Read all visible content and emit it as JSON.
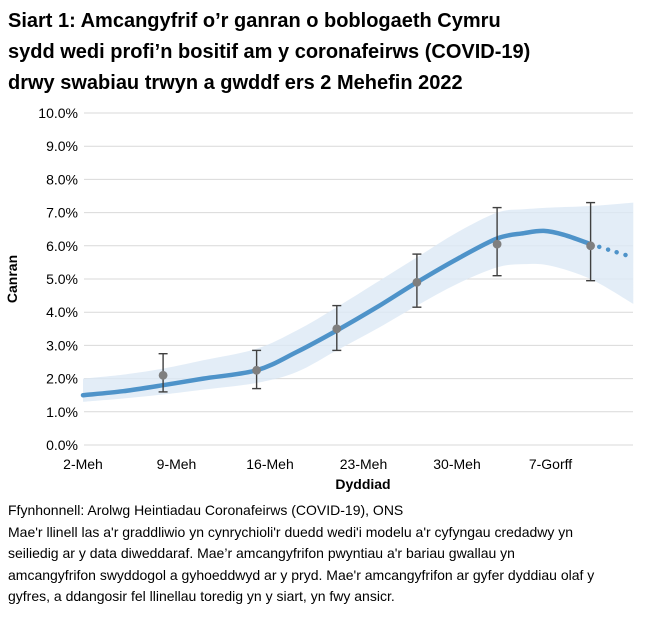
{
  "title": {
    "lines": [
      "Siart 1: Amcangyfrif o’r ganran o boblogaeth Cymru",
      "sydd wedi profi’n bositif am y coronafeirws (COVID-19)",
      "drwy swabiau trwyn a gwddf ers 2 Mehefin 2022"
    ]
  },
  "chart_data": {
    "type": "line",
    "title": "Estimated percentage of the population of Wales testing positive for COVID-19 (modelled trend with credible interval and official point estimates)",
    "xlabel": "Dyddiad",
    "ylabel": "Canran",
    "ylim": [
      0,
      10
    ],
    "grid": true,
    "legend": false,
    "y_ticks": [
      {
        "value": 0,
        "label": "0.0%"
      },
      {
        "value": 1,
        "label": "1.0%"
      },
      {
        "value": 2,
        "label": "2.0%"
      },
      {
        "value": 3,
        "label": "3.0%"
      },
      {
        "value": 4,
        "label": "4.0%"
      },
      {
        "value": 5,
        "label": "5.0%"
      },
      {
        "value": 6,
        "label": "6.0%"
      },
      {
        "value": 7,
        "label": "7.0%"
      },
      {
        "value": 8,
        "label": "8.0%"
      },
      {
        "value": 9,
        "label": "9.0%"
      },
      {
        "value": 10,
        "label": "10.0%"
      }
    ],
    "x_ticks": [
      {
        "day": 0,
        "label": "2-Meh"
      },
      {
        "day": 7,
        "label": "9-Meh"
      },
      {
        "day": 14,
        "label": "16-Meh"
      },
      {
        "day": 21,
        "label": "23-Meh"
      },
      {
        "day": 28,
        "label": "30-Meh"
      },
      {
        "day": 35,
        "label": "7-Gorff"
      }
    ],
    "series": [
      {
        "name": "modelled-trend",
        "style": "solid",
        "points": [
          [
            0,
            1.5
          ],
          [
            3,
            1.62
          ],
          [
            6,
            1.8
          ],
          [
            9,
            2.0
          ],
          [
            13,
            2.25
          ],
          [
            16,
            2.8
          ],
          [
            19,
            3.45
          ],
          [
            22,
            4.15
          ],
          [
            25,
            4.9
          ],
          [
            28,
            5.6
          ],
          [
            31,
            6.22
          ],
          [
            33,
            6.38
          ],
          [
            34.5,
            6.45
          ],
          [
            36,
            6.33
          ],
          [
            38,
            6.05
          ]
        ]
      },
      {
        "name": "modelled-trend-uncertain",
        "style": "dotted",
        "points": [
          [
            38,
            6.05
          ],
          [
            39.6,
            5.85
          ],
          [
            41.2,
            5.65
          ]
        ]
      }
    ],
    "confidence_band": {
      "upper": [
        [
          0,
          2.0
        ],
        [
          3,
          2.12
        ],
        [
          6,
          2.3
        ],
        [
          9,
          2.55
        ],
        [
          13,
          2.9
        ],
        [
          16,
          3.45
        ],
        [
          19,
          4.15
        ],
        [
          22,
          4.9
        ],
        [
          25,
          5.65
        ],
        [
          28,
          6.4
        ],
        [
          31,
          7.0
        ],
        [
          33,
          7.1
        ],
        [
          35,
          7.15
        ],
        [
          38,
          7.2
        ],
        [
          41.2,
          7.3
        ]
      ],
      "lower": [
        [
          0,
          1.3
        ],
        [
          3,
          1.4
        ],
        [
          6,
          1.52
        ],
        [
          9,
          1.67
        ],
        [
          13,
          1.87
        ],
        [
          16,
          2.2
        ],
        [
          19,
          2.85
        ],
        [
          22,
          3.5
        ],
        [
          25,
          4.2
        ],
        [
          28,
          4.85
        ],
        [
          31,
          5.35
        ],
        [
          33,
          5.45
        ],
        [
          35,
          5.4
        ],
        [
          38,
          5.0
        ],
        [
          41.2,
          4.25
        ]
      ]
    },
    "point_estimates": [
      {
        "day": 6,
        "value": 2.1,
        "lo": 1.6,
        "hi": 2.75
      },
      {
        "day": 13,
        "value": 2.25,
        "lo": 1.7,
        "hi": 2.85
      },
      {
        "day": 19,
        "value": 3.5,
        "lo": 2.85,
        "hi": 4.2
      },
      {
        "day": 25,
        "value": 4.9,
        "lo": 4.15,
        "hi": 5.75
      },
      {
        "day": 31,
        "value": 6.05,
        "lo": 5.1,
        "hi": 7.15
      },
      {
        "day": 38,
        "value": 6.0,
        "lo": 4.95,
        "hi": 7.3
      }
    ],
    "colors": {
      "trend": "#4e93c9",
      "band": "#dce8f5",
      "point": "#7f7f7f",
      "error_bar": "#404040",
      "grid": "#d9d9d9",
      "text": "#000000"
    }
  },
  "footer": {
    "source": "Ffynhonnell: Arolwg Heintiadau Coronafeirws (COVID-19), ONS",
    "note_lines": [
      "Mae'r llinell las a'r graddliwio yn cynrychioli'r duedd wedi'i modelu a'r cyfyngau credadwy yn",
      "seiliedig ar y data diweddaraf. Mae’r amcangyfrifon pwyntiau a'r bariau gwallau yn",
      "amcangyfrifon swyddogol a gyhoeddwyd ar y pryd. Mae'r amcangyfrifon ar gyfer dyddiau olaf y",
      "gyfres, a ddangosir fel llinellau toredig yn y siart, yn fwy ansicr."
    ]
  }
}
